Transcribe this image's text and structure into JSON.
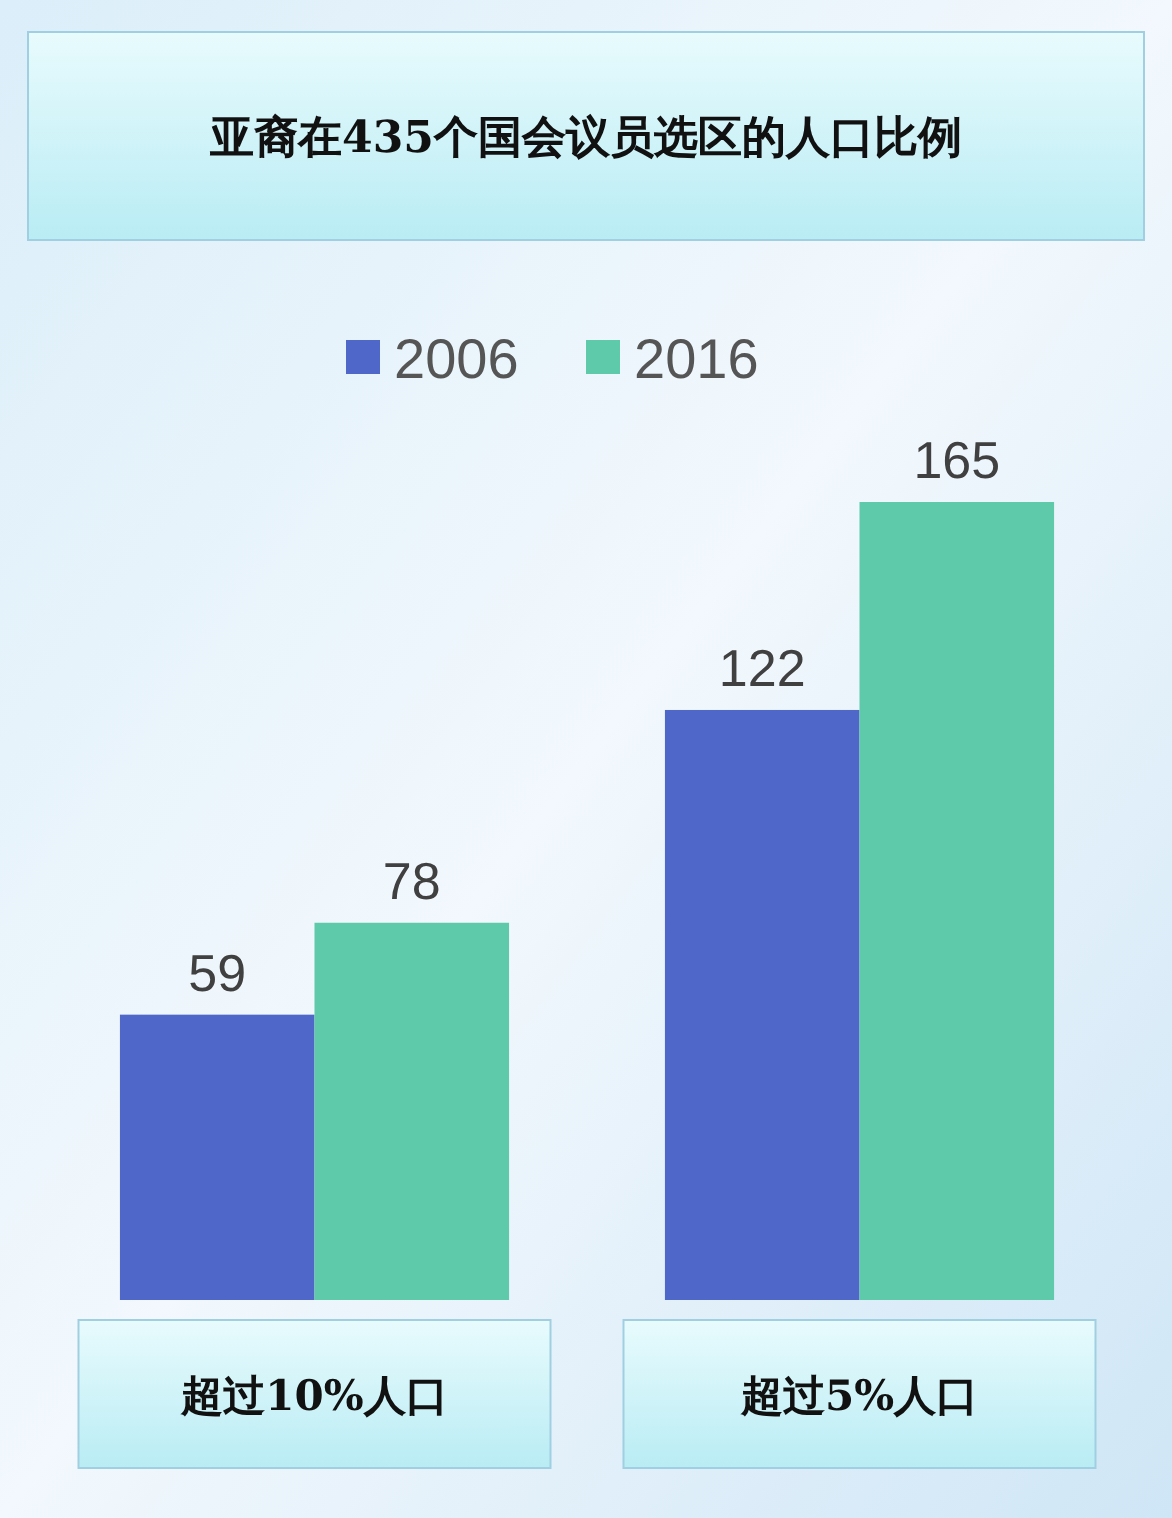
{
  "chart_data": {
    "type": "bar",
    "title": "亚裔在435个国会议员选区的人口比例",
    "categories": [
      "超过10%人口",
      "超过5%人口"
    ],
    "series": [
      {
        "name": "2006",
        "color": "#4f67c8",
        "values": [
          59,
          122
        ]
      },
      {
        "name": "2016",
        "color": "#5ecaa9",
        "values": [
          78,
          165
        ]
      }
    ],
    "data_labels": true,
    "legend": "top",
    "grid": false
  }
}
